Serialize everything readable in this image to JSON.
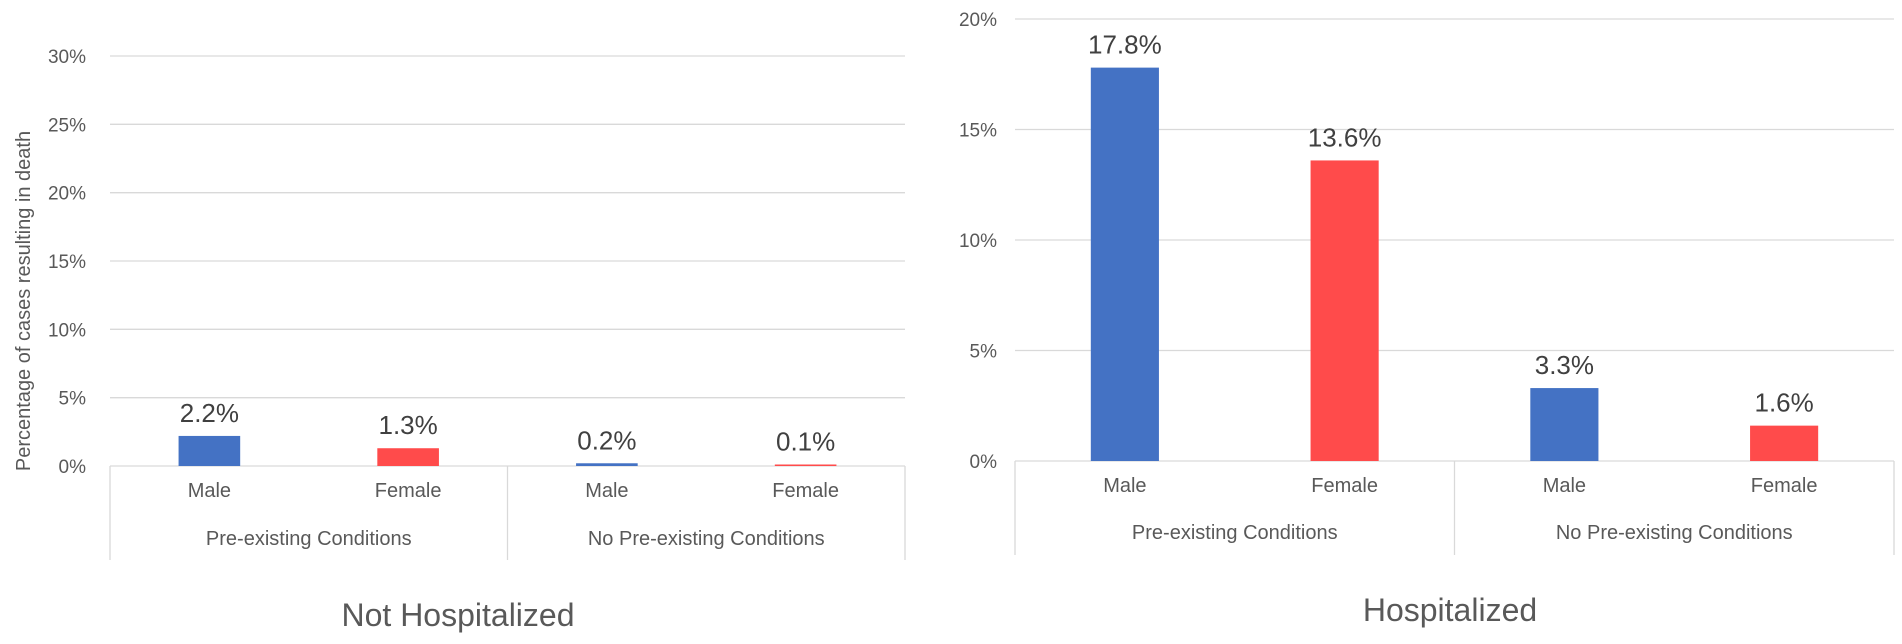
{
  "chart_data": [
    {
      "type": "bar",
      "title": "Not Hospitalized",
      "ylabel": "Percentage of cases resulting in death",
      "ylim": [
        0,
        30
      ],
      "yticks": [
        "0%",
        "5%",
        "10%",
        "15%",
        "20%",
        "25%",
        "30%"
      ],
      "groups": [
        "Pre-existing Conditions",
        "No Pre-existing Conditions"
      ],
      "categories": [
        "Male",
        "Female",
        "Male",
        "Female"
      ],
      "values": [
        2.2,
        1.3,
        0.2,
        0.1
      ],
      "value_labels": [
        "2.2%",
        "1.3%",
        "0.2%",
        "0.1%"
      ],
      "bar_colors": [
        "#4472c4",
        "#ff4b4b",
        "#4472c4",
        "#ff4b4b"
      ],
      "grid": true
    },
    {
      "type": "bar",
      "title": "Hospitalized",
      "ylabel": "",
      "ylim": [
        0,
        20
      ],
      "yticks": [
        "0%",
        "5%",
        "10%",
        "15%",
        "20%"
      ],
      "groups": [
        "Pre-existing Conditions",
        "No Pre-existing Conditions"
      ],
      "categories": [
        "Male",
        "Female",
        "Male",
        "Female"
      ],
      "values": [
        17.8,
        13.6,
        3.3,
        1.6
      ],
      "value_labels": [
        "17.8%",
        "13.6%",
        "3.3%",
        "1.6%"
      ],
      "bar_colors": [
        "#4472c4",
        "#ff4b4b",
        "#4472c4",
        "#ff4b4b"
      ],
      "grid": true
    }
  ]
}
